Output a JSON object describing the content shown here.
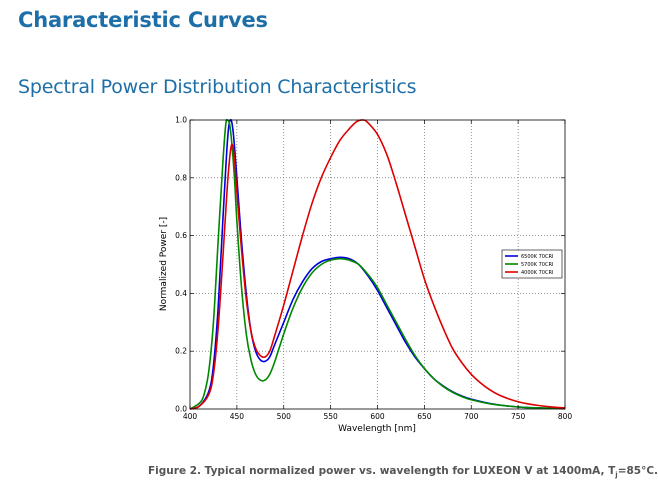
{
  "page": {
    "heading": "Characteristic Curves",
    "subheading": "Spectral Power Distribution Characteristics",
    "caption_main": "Figure 2. Typical normalized power vs. wavelength for LUXEON V at 1400mA, T",
    "caption_sub": "j",
    "caption_tail": "=85°C."
  },
  "chart_data": {
    "type": "line",
    "title": "",
    "xlabel": "Wavelength [nm]",
    "ylabel": "Normalized Power [-]",
    "xlim": [
      400,
      800
    ],
    "ylim": [
      0,
      1.0
    ],
    "xticks": [
      400,
      450,
      500,
      550,
      600,
      650,
      700,
      750,
      800
    ],
    "xtick_labels": [
      "400",
      "450",
      "500",
      "550",
      "600",
      "650",
      "700",
      "750",
      "800"
    ],
    "yticks": [
      0,
      0.2,
      0.4,
      0.6,
      0.8,
      1.0
    ],
    "ytick_labels": [
      "0.0",
      "0.2",
      "0.4",
      "0.6",
      "0.8",
      "1.0"
    ],
    "grid": true,
    "legend_position": "right",
    "series": [
      {
        "name": "6500K 70CRI",
        "color": "#0000dd",
        "points": [
          [
            400,
            0.0
          ],
          [
            410,
            0.01
          ],
          [
            420,
            0.06
          ],
          [
            425,
            0.15
          ],
          [
            430,
            0.35
          ],
          [
            435,
            0.65
          ],
          [
            440,
            0.93
          ],
          [
            443,
            1.0
          ],
          [
            446,
            0.96
          ],
          [
            450,
            0.8
          ],
          [
            455,
            0.58
          ],
          [
            460,
            0.4
          ],
          [
            465,
            0.27
          ],
          [
            470,
            0.2
          ],
          [
            475,
            0.17
          ],
          [
            480,
            0.165
          ],
          [
            485,
            0.18
          ],
          [
            490,
            0.22
          ],
          [
            500,
            0.3
          ],
          [
            510,
            0.38
          ],
          [
            520,
            0.44
          ],
          [
            530,
            0.485
          ],
          [
            540,
            0.51
          ],
          [
            550,
            0.52
          ],
          [
            560,
            0.525
          ],
          [
            570,
            0.52
          ],
          [
            580,
            0.5
          ],
          [
            590,
            0.46
          ],
          [
            600,
            0.41
          ],
          [
            610,
            0.35
          ],
          [
            620,
            0.29
          ],
          [
            630,
            0.23
          ],
          [
            640,
            0.18
          ],
          [
            650,
            0.14
          ],
          [
            660,
            0.105
          ],
          [
            670,
            0.08
          ],
          [
            680,
            0.06
          ],
          [
            690,
            0.045
          ],
          [
            700,
            0.034
          ],
          [
            720,
            0.019
          ],
          [
            740,
            0.01
          ],
          [
            760,
            0.005
          ],
          [
            780,
            0.003
          ],
          [
            800,
            0.002
          ]
        ]
      },
      {
        "name": "5700K 70CRI",
        "color": "#008800",
        "points": [
          [
            400,
            0.0
          ],
          [
            410,
            0.02
          ],
          [
            415,
            0.05
          ],
          [
            420,
            0.13
          ],
          [
            425,
            0.3
          ],
          [
            430,
            0.58
          ],
          [
            435,
            0.85
          ],
          [
            438,
            0.98
          ],
          [
            440,
            1.0
          ],
          [
            443,
            0.97
          ],
          [
            447,
            0.82
          ],
          [
            450,
            0.65
          ],
          [
            455,
            0.42
          ],
          [
            460,
            0.26
          ],
          [
            465,
            0.17
          ],
          [
            470,
            0.12
          ],
          [
            475,
            0.1
          ],
          [
            480,
            0.1
          ],
          [
            485,
            0.12
          ],
          [
            490,
            0.16
          ],
          [
            500,
            0.26
          ],
          [
            510,
            0.35
          ],
          [
            520,
            0.42
          ],
          [
            530,
            0.47
          ],
          [
            540,
            0.5
          ],
          [
            550,
            0.515
          ],
          [
            560,
            0.52
          ],
          [
            570,
            0.515
          ],
          [
            580,
            0.5
          ],
          [
            590,
            0.465
          ],
          [
            600,
            0.42
          ],
          [
            610,
            0.36
          ],
          [
            620,
            0.3
          ],
          [
            630,
            0.24
          ],
          [
            640,
            0.185
          ],
          [
            650,
            0.14
          ],
          [
            660,
            0.105
          ],
          [
            670,
            0.078
          ],
          [
            680,
            0.058
          ],
          [
            690,
            0.043
          ],
          [
            700,
            0.032
          ],
          [
            720,
            0.018
          ],
          [
            740,
            0.01
          ],
          [
            760,
            0.005
          ],
          [
            780,
            0.003
          ],
          [
            800,
            0.002
          ]
        ]
      },
      {
        "name": "4000K 70CRI",
        "color": "#dd0000",
        "points": [
          [
            400,
            0.0
          ],
          [
            410,
            0.01
          ],
          [
            420,
            0.05
          ],
          [
            425,
            0.12
          ],
          [
            430,
            0.28
          ],
          [
            435,
            0.52
          ],
          [
            440,
            0.78
          ],
          [
            444,
            0.91
          ],
          [
            447,
            0.88
          ],
          [
            450,
            0.75
          ],
          [
            455,
            0.55
          ],
          [
            460,
            0.38
          ],
          [
            465,
            0.27
          ],
          [
            470,
            0.21
          ],
          [
            475,
            0.185
          ],
          [
            480,
            0.18
          ],
          [
            485,
            0.2
          ],
          [
            490,
            0.25
          ],
          [
            500,
            0.36
          ],
          [
            510,
            0.48
          ],
          [
            520,
            0.6
          ],
          [
            530,
            0.71
          ],
          [
            540,
            0.8
          ],
          [
            550,
            0.87
          ],
          [
            560,
            0.93
          ],
          [
            570,
            0.97
          ],
          [
            578,
            0.995
          ],
          [
            585,
            1.0
          ],
          [
            590,
            0.99
          ],
          [
            600,
            0.95
          ],
          [
            610,
            0.88
          ],
          [
            620,
            0.78
          ],
          [
            630,
            0.67
          ],
          [
            640,
            0.56
          ],
          [
            650,
            0.45
          ],
          [
            660,
            0.36
          ],
          [
            670,
            0.28
          ],
          [
            680,
            0.21
          ],
          [
            690,
            0.16
          ],
          [
            700,
            0.12
          ],
          [
            710,
            0.09
          ],
          [
            720,
            0.066
          ],
          [
            730,
            0.048
          ],
          [
            740,
            0.035
          ],
          [
            750,
            0.025
          ],
          [
            760,
            0.018
          ],
          [
            770,
            0.013
          ],
          [
            780,
            0.009
          ],
          [
            790,
            0.006
          ],
          [
            800,
            0.004
          ]
        ]
      }
    ]
  }
}
